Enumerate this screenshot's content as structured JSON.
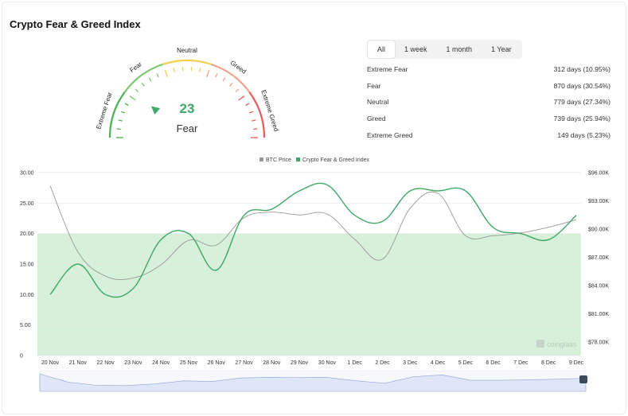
{
  "header": {
    "title": "Crypto Fear & Greed Index"
  },
  "gauge": {
    "value": "23",
    "label": "Fear",
    "segments": [
      "Extreme Fear",
      "Fear",
      "Neutral",
      "Greed",
      "Extreme Greed"
    ],
    "colors": {
      "extreme_fear": "#e74c4c",
      "fear": "#f39c4a",
      "neutral": "#f5d04a",
      "greed": "#8fd14f",
      "extreme_greed": "#3ea866"
    }
  },
  "tabs": [
    {
      "label": "All",
      "active": true
    },
    {
      "label": "1 week",
      "active": false
    },
    {
      "label": "1 month",
      "active": false
    },
    {
      "label": "1 Year",
      "active": false
    }
  ],
  "stats": [
    {
      "label": "Extreme Fear",
      "value": "312 days (10.95%)"
    },
    {
      "label": "Fear",
      "value": "870 days (30.54%)"
    },
    {
      "label": "Neutral",
      "value": "779 days (27.34%)"
    },
    {
      "label": "Greed",
      "value": "739 days (25.94%)"
    },
    {
      "label": "Extreme Greed",
      "value": "149 days (5.23%)"
    }
  ],
  "watermark": "coinglass",
  "chart_data": {
    "type": "line",
    "categories": [
      "20 Nov",
      "21 Nov",
      "22 Nov",
      "23 Nov",
      "24 Nov",
      "25 Nov",
      "26 Nov",
      "27 Nov",
      "28 Nov",
      "29 Nov",
      "30 Nov",
      "1 Dec",
      "2 Dec",
      "3 Dec",
      "4 Dec",
      "5 Dec",
      "6 Dec",
      "7 Dec",
      "8 Dec",
      "9 Dec"
    ],
    "series": [
      {
        "name": "BTC Price",
        "axis": "right",
        "color": "#999999",
        "values": [
          94600,
          87600,
          85000,
          84800,
          86200,
          88800,
          88300,
          91200,
          91800,
          91500,
          91600,
          88900,
          86800,
          92200,
          93800,
          89300,
          89300,
          89600,
          90200,
          91000
        ]
      },
      {
        "name": "Crypto Fear & Greed Index",
        "axis": "left",
        "color": "#3ea866",
        "values": [
          10,
          15,
          10,
          11,
          19,
          20,
          14,
          23,
          24,
          27,
          28,
          23,
          22,
          27,
          27,
          27,
          21,
          20,
          19,
          23
        ]
      }
    ],
    "left_axis": {
      "ticks": [
        "30.00",
        "25.00",
        "20.00",
        "15.00",
        "10.00",
        "5.00",
        "0"
      ],
      "ylim": [
        0,
        30
      ]
    },
    "right_axis": {
      "ticks": [
        "$96.00K",
        "$93.00K",
        "$90.00K",
        "$87.00K",
        "$84.00K",
        "$81.00K",
        "$78.00K"
      ],
      "ylim": [
        77000,
        96000
      ]
    },
    "zone": {
      "from": 0,
      "to": 20,
      "color": "#d6f0da"
    },
    "legend_position": "top-center",
    "grid": true
  }
}
